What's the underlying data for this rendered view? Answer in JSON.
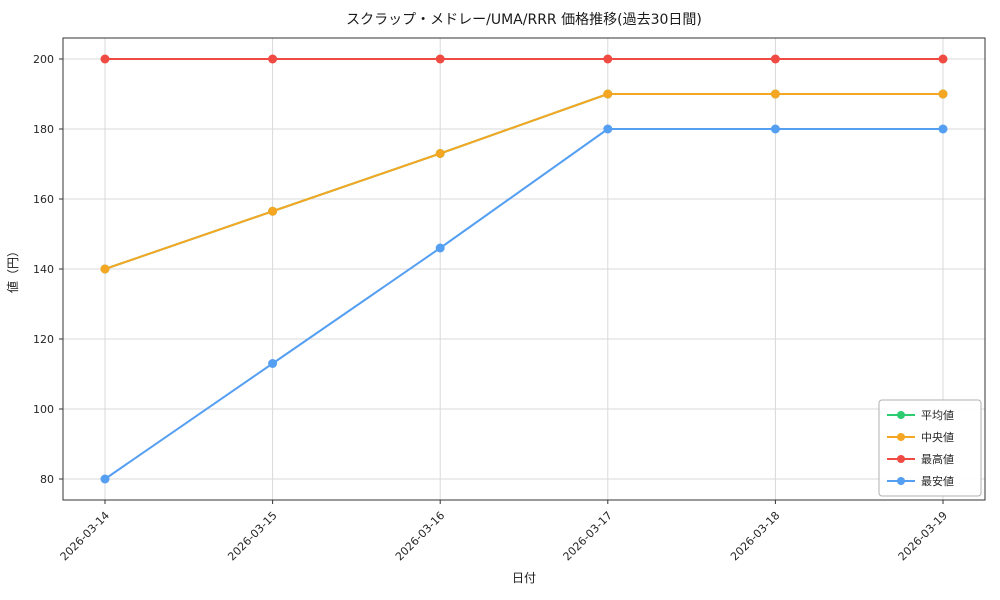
{
  "title": "スクラップ・メドレー/UMA/RRR 価格推移(過去30日間)",
  "chart_data": {
    "type": "line",
    "x": [
      "2026-03-14",
      "2026-03-15",
      "2026-03-16",
      "2026-03-17",
      "2026-03-18",
      "2026-03-19"
    ],
    "series": [
      {
        "name": "平均値",
        "color": "#2ecc71",
        "values": [
          140,
          156.5,
          173,
          190,
          190,
          190
        ]
      },
      {
        "name": "中央値",
        "color": "#f5a623",
        "values": [
          140,
          156.5,
          173,
          190,
          190,
          190
        ]
      },
      {
        "name": "最高値",
        "color": "#ef4b42",
        "values": [
          200,
          200,
          200,
          200,
          200,
          200
        ]
      },
      {
        "name": "最安値",
        "color": "#559ff2",
        "values": [
          80,
          113,
          146,
          180,
          180,
          180
        ]
      }
    ],
    "xlabel": "日付",
    "ylabel": "値（円）",
    "yticks": [
      80,
      100,
      120,
      140,
      160,
      180,
      200
    ],
    "ylim": [
      74,
      206
    ],
    "grid": true,
    "legend": {
      "position": "lower right",
      "labels": [
        "平均値",
        "中央値",
        "最高値",
        "最安値"
      ]
    }
  }
}
